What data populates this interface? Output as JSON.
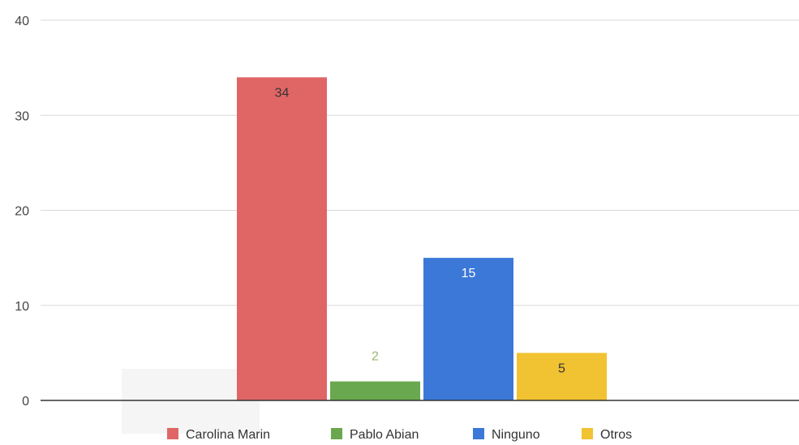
{
  "chart_data": {
    "type": "bar",
    "categories": [
      "Carolina Marin",
      "Pablo Abian",
      "Ninguno",
      "Otros"
    ],
    "values": [
      34,
      2,
      15,
      5
    ],
    "colors": [
      "#e06666",
      "#6aa84f",
      "#3c78d8",
      "#f1c232"
    ],
    "label_colors": [
      "#333333",
      "#9ab870",
      "#ffffff",
      "#333333"
    ],
    "label_position": [
      "inside",
      "above",
      "inside",
      "inside"
    ],
    "yticks": [
      "0",
      "10",
      "20",
      "30",
      "40"
    ],
    "ylim": [
      0,
      40
    ],
    "grid": true,
    "legend_position": "bottom",
    "title": "",
    "xlabel": "",
    "ylabel": ""
  }
}
